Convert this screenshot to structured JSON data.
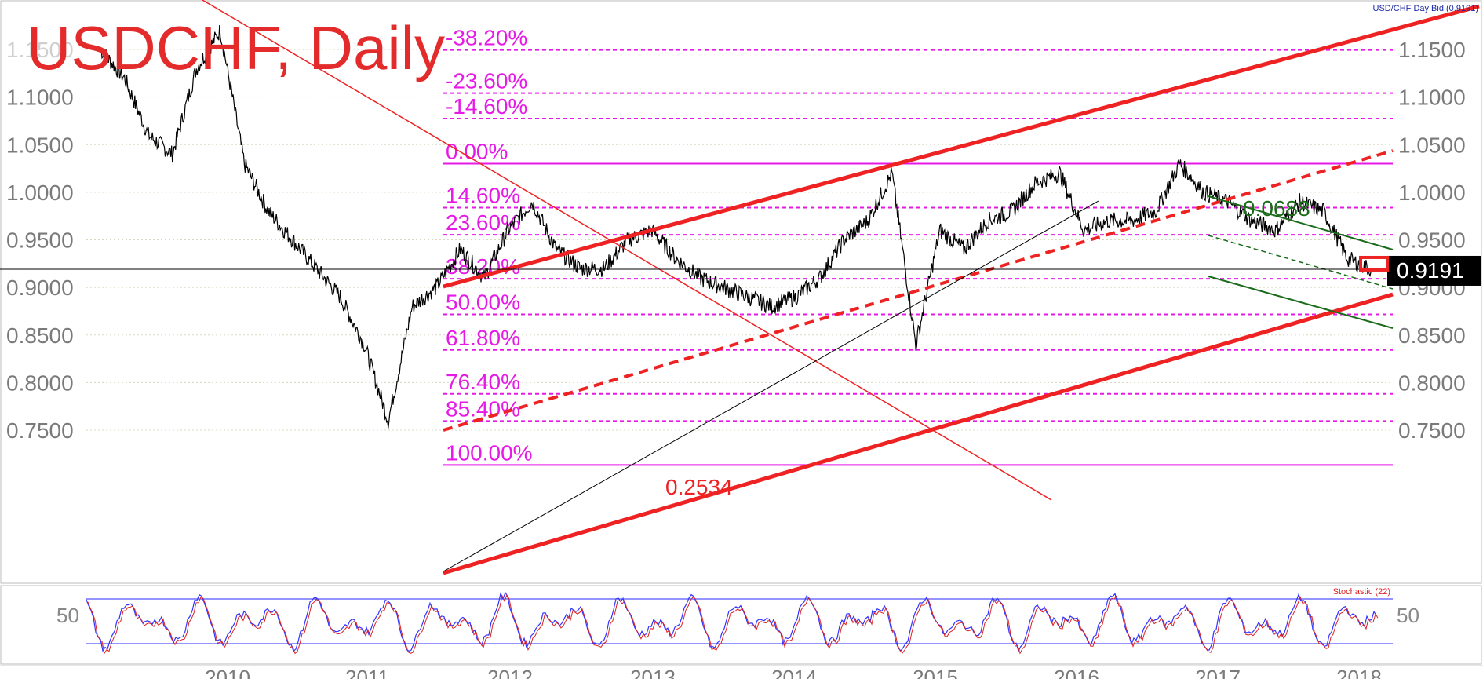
{
  "header": {
    "title": "USDCHF, Daily",
    "instrument_label": "USD/CHF Day Bid (0.9191)"
  },
  "price": {
    "last": 0.9191,
    "last_label": "0.9191",
    "axis_ticks": [
      1.15,
      1.1,
      1.05,
      1.0,
      0.95,
      0.9,
      0.85,
      0.8,
      0.75
    ],
    "axis_tick_labels": [
      "1.1500",
      "1.1000",
      "1.0500",
      "1.0000",
      "0.9500",
      "0.9000",
      "0.8500",
      "0.8000",
      "0.7500"
    ],
    "left_tick_labels": [
      "1.1000",
      "1.0500",
      "1.0000",
      "0.9500",
      "0.9000",
      "0.8500",
      "0.8000",
      "0.7500"
    ],
    "partial_left_label": "1.1500"
  },
  "fibonacci": {
    "levels": [
      {
        "label": "-38.20%",
        "price": 1.1495
      },
      {
        "label": "-23.60%",
        "price": 1.1041
      },
      {
        "label": "-14.60%",
        "price": 1.0774
      },
      {
        "label": "0.00%",
        "price": 1.03
      },
      {
        "label": "14.60%",
        "price": 0.9838
      },
      {
        "label": "23.60%",
        "price": 0.9553
      },
      {
        "label": "38.20%",
        "price": 0.9091
      },
      {
        "label": "50.00%",
        "price": 0.8717
      },
      {
        "label": "61.80%",
        "price": 0.8343
      },
      {
        "label": "76.40%",
        "price": 0.7881
      },
      {
        "label": "85.40%",
        "price": 0.7596
      },
      {
        "label": "100.00%",
        "price": 0.7134
      }
    ],
    "color": "#e619e6"
  },
  "annotations": {
    "channel_width_label": "0.2534",
    "short_channel_label": "0.0688"
  },
  "channel": {
    "color": "#ee2222",
    "description": "rising channel"
  },
  "stochastic": {
    "label": "Stochastic (22)",
    "level_label_left": "50",
    "level_label_right": "50",
    "upper_level": 80,
    "lower_level": 20
  },
  "x_axis": {
    "years": [
      "2010",
      "2011",
      "2012",
      "2013",
      "2014",
      "2015",
      "2016",
      "2017",
      "2018"
    ]
  },
  "chart_data": {
    "type": "line",
    "title": "USDCHF, Daily",
    "series": [
      {
        "name": "USD/CHF Day Bid",
        "x": [
          "2009-06",
          "2009-09",
          "2009-12",
          "2010-02",
          "2010-04",
          "2010-06",
          "2010-08",
          "2010-10",
          "2010-12",
          "2011-02",
          "2011-04",
          "2011-06",
          "2011-08",
          "2011-09",
          "2011-11",
          "2012-01",
          "2012-03",
          "2012-05",
          "2012-07",
          "2012-09",
          "2012-11",
          "2013-01",
          "2013-03",
          "2013-05",
          "2013-07",
          "2013-09",
          "2013-11",
          "2014-01",
          "2014-03",
          "2014-05",
          "2014-07",
          "2014-09",
          "2014-11",
          "2015-01",
          "2015-02",
          "2015-04",
          "2015-06",
          "2015-08",
          "2015-10",
          "2015-12",
          "2016-02",
          "2016-04",
          "2016-06",
          "2016-08",
          "2016-10",
          "2016-12",
          "2017-02",
          "2017-04",
          "2017-06",
          "2017-08",
          "2017-10",
          "2017-12",
          "2018-02",
          "2018-03"
        ],
        "values": [
          1.15,
          1.12,
          1.06,
          1.04,
          1.13,
          1.17,
          1.03,
          0.98,
          0.95,
          0.92,
          0.89,
          0.84,
          0.76,
          0.88,
          0.9,
          0.94,
          0.91,
          0.96,
          0.99,
          0.94,
          0.92,
          0.92,
          0.95,
          0.96,
          0.93,
          0.91,
          0.9,
          0.89,
          0.88,
          0.89,
          0.91,
          0.95,
          0.97,
          1.02,
          0.84,
          0.96,
          0.94,
          0.97,
          0.98,
          1.01,
          1.02,
          0.96,
          0.97,
          0.97,
          0.98,
          1.03,
          1.0,
          0.99,
          0.97,
          0.96,
          0.99,
          0.98,
          0.93,
          0.9191
        ]
      }
    ],
    "ylim": [
      0.7,
      1.2
    ],
    "grid": true,
    "legend": "none"
  }
}
